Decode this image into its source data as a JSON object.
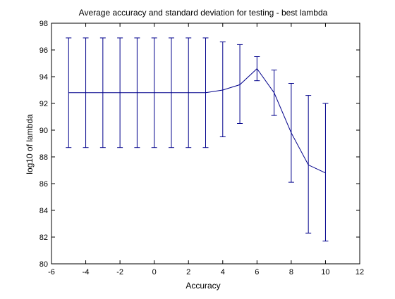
{
  "chart_data": {
    "type": "line",
    "title": "Average accuracy and standard deviation for testing - best lambda",
    "xlabel": "Accuracy",
    "ylabel": "log10 of lambda",
    "xlim": [
      -6,
      12
    ],
    "ylim": [
      80,
      98
    ],
    "xticks": [
      -6,
      -4,
      -2,
      0,
      2,
      4,
      6,
      8,
      10,
      12
    ],
    "yticks": [
      80,
      82,
      84,
      86,
      88,
      90,
      92,
      94,
      96,
      98
    ],
    "grid": false,
    "series": [
      {
        "color": "#00008b",
        "x": [
          -5,
          -4,
          -3,
          -2,
          -1,
          0,
          1,
          2,
          3,
          4,
          5,
          6,
          7,
          8,
          9,
          10
        ],
        "y": [
          92.8,
          92.8,
          92.8,
          92.8,
          92.8,
          92.8,
          92.8,
          92.8,
          92.8,
          93.0,
          93.4,
          94.6,
          92.8,
          89.8,
          87.4,
          86.8
        ],
        "lower": [
          88.7,
          88.7,
          88.7,
          88.7,
          88.7,
          88.7,
          88.7,
          88.7,
          88.7,
          89.5,
          90.5,
          93.7,
          91.1,
          86.1,
          82.3,
          81.7
        ],
        "upper": [
          96.9,
          96.9,
          96.9,
          96.9,
          96.9,
          96.9,
          96.9,
          96.9,
          96.9,
          96.6,
          96.4,
          95.5,
          94.5,
          93.5,
          92.6,
          92.0
        ]
      }
    ]
  }
}
